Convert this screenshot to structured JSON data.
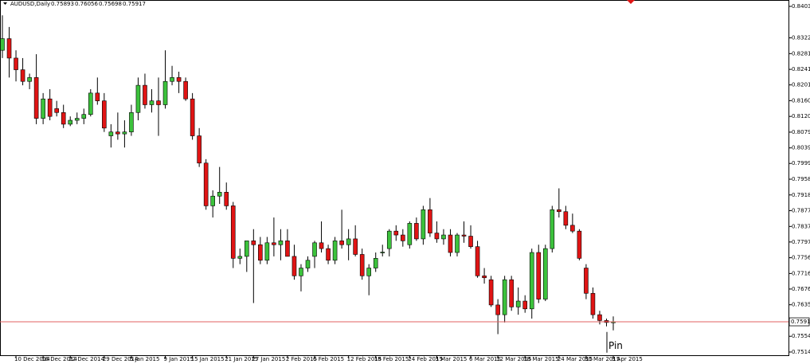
{
  "chart_data": {
    "type": "candlestick",
    "header": {
      "symbol": "AUDUSD,Daily",
      "ohlc": [
        0.75893,
        0.76056,
        0.75698,
        0.75917
      ]
    },
    "annotation": "Pin",
    "last_price": 0.75917,
    "up_color": "#3cc23c",
    "down_color": "#e01414",
    "price_line_color": "#e06060",
    "ylim": [
      0.75037,
      0.84194
    ],
    "yticks": [
      {
        "value": 0.8403,
        "label": "0.84030"
      },
      {
        "value": 0.8322,
        "label": "0.83220"
      },
      0.82815,
      {
        "value": 0.8241,
        "label": "0.82410"
      },
      {
        "value": 0.8201,
        "label": "0.82010"
      },
      0.81605,
      {
        "value": 0.812,
        "label": "0.81200"
      },
      0.80795,
      {
        "value": 0.8039,
        "label": "0.80390"
      },
      {
        "value": 0.7999,
        "label": "0.79990"
      },
      0.79585,
      {
        "value": 0.7918,
        "label": "0.79180"
      },
      0.78775,
      {
        "value": 0.7837,
        "label": "0.78370"
      },
      {
        "value": 0.7797,
        "label": "0.77970"
      },
      0.77565,
      {
        "value": 0.7716,
        "label": "0.77160"
      },
      {
        "value": 0.7676,
        "label": "0.76760"
      },
      0.76355,
      0.75545,
      {
        "value": 0.7514,
        "label": "0.75140"
      }
    ],
    "categories": [
      null,
      null,
      "10 Dec 2014",
      null,
      null,
      null,
      "16 Dec 2014",
      null,
      null,
      null,
      "22 Dec 2014",
      null,
      null,
      null,
      null,
      "29 Dec 2014",
      null,
      null,
      null,
      "5 Jan 2015",
      null,
      null,
      null,
      null,
      "9 Jan 2015",
      null,
      null,
      null,
      "15 Jan 2015",
      null,
      null,
      null,
      null,
      "21 Jan 2015",
      null,
      null,
      null,
      "27 Jan 2015",
      null,
      null,
      null,
      null,
      "2 Feb 2015",
      null,
      null,
      null,
      "6 Feb 2015",
      null,
      null,
      null,
      null,
      "12 Feb 2015",
      null,
      null,
      null,
      "18 Feb 2015",
      null,
      null,
      null,
      null,
      "24 Feb 2015",
      null,
      null,
      null,
      "3 Mar 2015",
      null,
      null,
      null,
      null,
      "6 Mar 2015",
      null,
      null,
      null,
      "12 Mar 2015",
      null,
      null,
      null,
      "18 Mar 2015",
      null,
      null,
      null,
      null,
      "24 Mar 2015",
      null,
      null,
      null,
      "30 Mar 2015",
      null,
      null,
      null,
      "3 Apr 2015"
    ],
    "open": [
      0.829,
      0.832,
      0.827,
      0.824,
      0.821,
      0.822,
      0.8115,
      0.8165,
      0.814,
      0.813,
      0.81,
      0.811,
      0.8115,
      0.8125,
      0.818,
      0.816,
      0.807,
      0.808,
      0.8075,
      0.808,
      0.813,
      0.82,
      0.815,
      0.816,
      0.815,
      0.821,
      0.822,
      0.821,
      0.8165,
      0.807,
      0.8,
      0.789,
      0.7915,
      0.7925,
      0.789,
      0.7755,
      0.776,
      0.78,
      0.779,
      0.775,
      0.7795,
      0.779,
      0.78,
      0.776,
      0.771,
      0.773,
      0.776,
      0.7795,
      0.778,
      0.775,
      0.78,
      0.779,
      0.7805,
      0.7765,
      0.771,
      0.773,
      0.777,
      0.778,
      0.7825,
      0.7815,
      0.779,
      0.7845,
      0.7805,
      0.788,
      0.782,
      0.7805,
      0.7815,
      0.777,
      0.7815,
      0.7812,
      0.7785,
      0.771,
      0.77,
      0.7635,
      0.761,
      0.77,
      0.763,
      0.7645,
      0.7625,
      0.777,
      0.765,
      0.778,
      0.788,
      0.7875,
      0.784,
      0.7825,
      0.773,
      0.7665,
      0.761,
      0.7595,
      0.75893
    ],
    "high": [
      0.838,
      0.835,
      0.829,
      0.827,
      0.823,
      0.828,
      0.818,
      0.819,
      0.816,
      0.815,
      0.812,
      0.813,
      0.814,
      0.819,
      0.822,
      0.818,
      0.81,
      0.813,
      0.811,
      0.815,
      0.822,
      0.823,
      0.819,
      0.822,
      0.829,
      0.825,
      0.8235,
      0.822,
      0.818,
      0.809,
      0.801,
      0.793,
      0.799,
      0.795,
      0.79,
      0.778,
      0.78,
      0.783,
      0.781,
      0.781,
      0.786,
      0.783,
      0.783,
      0.779,
      0.774,
      0.776,
      0.78,
      0.785,
      0.779,
      0.781,
      0.788,
      0.783,
      0.784,
      0.778,
      0.774,
      0.777,
      0.779,
      0.783,
      0.784,
      0.783,
      0.785,
      0.786,
      0.789,
      0.791,
      0.785,
      0.783,
      0.783,
      0.782,
      0.785,
      0.784,
      0.78,
      0.773,
      0.771,
      0.765,
      0.771,
      0.771,
      0.768,
      0.766,
      0.778,
      0.779,
      0.779,
      0.789,
      0.7935,
      0.789,
      0.787,
      0.783,
      0.774,
      0.768,
      0.762,
      0.76,
      0.76056
    ],
    "low": [
      0.827,
      0.822,
      0.821,
      0.82,
      0.819,
      0.81,
      0.81,
      0.811,
      0.812,
      0.809,
      0.8095,
      0.81,
      0.81,
      0.812,
      0.815,
      0.808,
      0.804,
      0.806,
      0.804,
      0.807,
      0.811,
      0.814,
      0.813,
      0.807,
      0.814,
      0.82,
      0.818,
      0.816,
      0.806,
      0.799,
      0.788,
      0.786,
      0.7895,
      0.788,
      0.773,
      0.774,
      0.772,
      0.764,
      0.774,
      0.774,
      0.776,
      0.775,
      0.776,
      0.77,
      0.767,
      0.772,
      0.773,
      0.777,
      0.774,
      0.774,
      0.778,
      0.775,
      0.776,
      0.77,
      0.766,
      0.772,
      0.776,
      0.776,
      0.78,
      0.7785,
      0.778,
      0.78,
      0.779,
      0.781,
      0.7795,
      0.779,
      0.776,
      0.776,
      0.7795,
      0.778,
      0.7705,
      0.769,
      0.763,
      0.756,
      0.759,
      0.762,
      0.761,
      0.7615,
      0.76,
      0.764,
      0.7645,
      0.777,
      0.786,
      0.783,
      0.782,
      0.775,
      0.765,
      0.76,
      0.7585,
      0.758,
      0.75698
    ],
    "close": [
      0.832,
      0.827,
      0.824,
      0.821,
      0.822,
      0.8115,
      0.8165,
      0.812,
      0.813,
      0.81,
      0.811,
      0.8115,
      0.8125,
      0.818,
      0.816,
      0.809,
      0.808,
      0.8075,
      0.808,
      0.813,
      0.82,
      0.815,
      0.816,
      0.815,
      0.821,
      0.822,
      0.821,
      0.8165,
      0.807,
      0.8,
      0.789,
      0.7915,
      0.7925,
      0.789,
      0.7755,
      0.776,
      0.78,
      0.779,
      0.775,
      0.7795,
      0.779,
      0.78,
      0.776,
      0.771,
      0.773,
      0.775,
      0.7795,
      0.778,
      0.775,
      0.78,
      0.779,
      0.7805,
      0.7765,
      0.771,
      0.773,
      0.7755,
      0.7771,
      0.7825,
      0.7815,
      0.78,
      0.7845,
      0.7805,
      0.788,
      0.782,
      0.7805,
      0.7815,
      0.777,
      0.7815,
      0.7812,
      0.7785,
      0.771,
      0.7705,
      0.7635,
      0.761,
      0.77,
      0.763,
      0.7645,
      0.7625,
      0.777,
      0.765,
      0.778,
      0.788,
      0.7875,
      0.784,
      0.7825,
      0.7755,
      0.7665,
      0.761,
      0.7595,
      0.759,
      0.75917
    ]
  }
}
